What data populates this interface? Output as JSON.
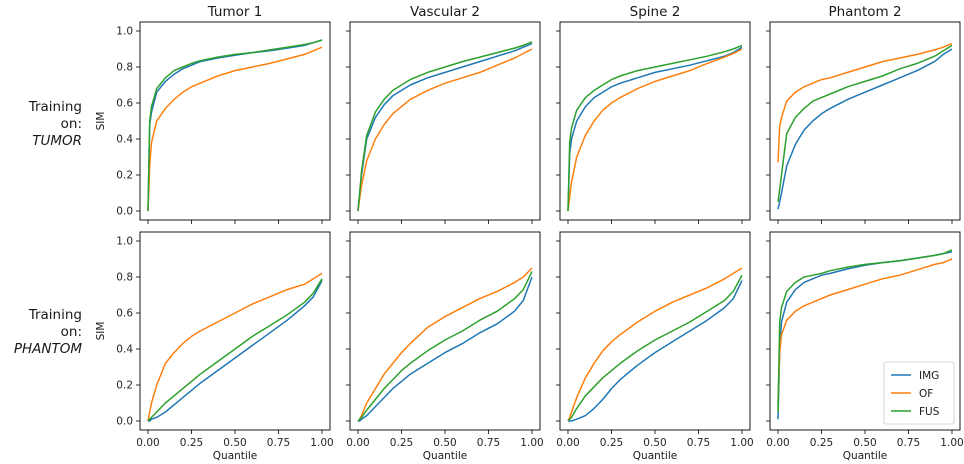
{
  "colors": {
    "IMG": "#1f77b4",
    "OF": "#ff7f0e",
    "FUS": "#2ca02c"
  },
  "row_labels": [
    {
      "line1": "Training",
      "line2": "on:",
      "line3": "TUMOR"
    },
    {
      "line1": "Training",
      "line2": "on:",
      "line3": "PHANTOM"
    }
  ],
  "chart_data": {
    "type": "line",
    "layout": "2x4 grid",
    "column_titles": [
      "Tumor 1",
      "Vascular 2",
      "Spine 2",
      "Phantom 2"
    ],
    "xlabel": "Quantile",
    "ylabel": "SIM",
    "xlim": [
      0,
      1
    ],
    "ylim": [
      0,
      1
    ],
    "xticks": [
      "0.00",
      "0.25",
      "0.50",
      "0.75",
      "1.00"
    ],
    "yticks": [
      "0.0",
      "0.2",
      "0.4",
      "0.6",
      "0.8",
      "1.0"
    ],
    "grid": false,
    "legend": {
      "placement": "lower-right",
      "panel": "row 2, Phantom 2",
      "entries": [
        "IMG",
        "OF",
        "FUS"
      ]
    },
    "series_names": [
      "IMG",
      "OF",
      "FUS"
    ],
    "x": [
      0,
      0.01,
      0.02,
      0.05,
      0.1,
      0.15,
      0.2,
      0.25,
      0.3,
      0.4,
      0.5,
      0.6,
      0.7,
      0.8,
      0.9,
      0.95,
      1.0
    ],
    "panels": [
      {
        "row": 0,
        "col": 0,
        "series": [
          {
            "name": "IMG",
            "values": [
              0.0,
              0.48,
              0.55,
              0.66,
              0.72,
              0.76,
              0.79,
              0.81,
              0.83,
              0.85,
              0.865,
              0.88,
              0.89,
              0.905,
              0.92,
              0.935,
              0.95
            ]
          },
          {
            "name": "OF",
            "values": [
              0.0,
              0.25,
              0.38,
              0.5,
              0.57,
              0.62,
              0.66,
              0.69,
              0.71,
              0.75,
              0.78,
              0.8,
              0.82,
              0.845,
              0.87,
              0.89,
              0.91
            ]
          },
          {
            "name": "FUS",
            "values": [
              0.0,
              0.5,
              0.58,
              0.68,
              0.74,
              0.78,
              0.8,
              0.82,
              0.835,
              0.855,
              0.87,
              0.88,
              0.895,
              0.91,
              0.925,
              0.935,
              0.95
            ]
          }
        ]
      },
      {
        "row": 0,
        "col": 1,
        "series": [
          {
            "name": "IMG",
            "values": [
              0.0,
              0.1,
              0.2,
              0.4,
              0.52,
              0.59,
              0.64,
              0.67,
              0.7,
              0.74,
              0.77,
              0.8,
              0.83,
              0.86,
              0.89,
              0.91,
              0.93
            ]
          },
          {
            "name": "OF",
            "values": [
              0.0,
              0.07,
              0.14,
              0.28,
              0.4,
              0.48,
              0.54,
              0.58,
              0.62,
              0.67,
              0.71,
              0.74,
              0.77,
              0.81,
              0.85,
              0.875,
              0.9
            ]
          },
          {
            "name": "FUS",
            "values": [
              0.0,
              0.1,
              0.22,
              0.42,
              0.55,
              0.62,
              0.67,
              0.7,
              0.73,
              0.77,
              0.8,
              0.83,
              0.855,
              0.88,
              0.905,
              0.92,
              0.94
            ]
          }
        ]
      },
      {
        "row": 0,
        "col": 2,
        "series": [
          {
            "name": "IMG",
            "values": [
              0.0,
              0.32,
              0.4,
              0.5,
              0.58,
              0.63,
              0.66,
              0.69,
              0.71,
              0.74,
              0.77,
              0.79,
              0.81,
              0.835,
              0.86,
              0.88,
              0.91
            ]
          },
          {
            "name": "OF",
            "values": [
              0.0,
              0.08,
              0.16,
              0.3,
              0.42,
              0.5,
              0.56,
              0.6,
              0.63,
              0.68,
              0.72,
              0.75,
              0.78,
              0.82,
              0.855,
              0.875,
              0.9
            ]
          },
          {
            "name": "FUS",
            "values": [
              0.0,
              0.38,
              0.46,
              0.56,
              0.63,
              0.67,
              0.7,
              0.73,
              0.75,
              0.78,
              0.8,
              0.82,
              0.84,
              0.86,
              0.885,
              0.9,
              0.92
            ]
          }
        ]
      },
      {
        "row": 0,
        "col": 3,
        "series": [
          {
            "name": "IMG",
            "values": [
              0.01,
              0.05,
              0.1,
              0.25,
              0.37,
              0.45,
              0.5,
              0.54,
              0.57,
              0.62,
              0.66,
              0.7,
              0.74,
              0.78,
              0.83,
              0.87,
              0.9
            ]
          },
          {
            "name": "OF",
            "values": [
              0.27,
              0.47,
              0.52,
              0.61,
              0.66,
              0.69,
              0.71,
              0.73,
              0.74,
              0.77,
              0.8,
              0.83,
              0.85,
              0.87,
              0.895,
              0.91,
              0.93
            ]
          },
          {
            "name": "FUS",
            "values": [
              0.05,
              0.12,
              0.2,
              0.43,
              0.52,
              0.57,
              0.61,
              0.63,
              0.65,
              0.69,
              0.72,
              0.75,
              0.79,
              0.82,
              0.86,
              0.89,
              0.92
            ]
          }
        ]
      },
      {
        "row": 1,
        "col": 0,
        "series": [
          {
            "name": "IMG",
            "values": [
              0.0,
              0.0,
              0.01,
              0.02,
              0.05,
              0.09,
              0.13,
              0.17,
              0.21,
              0.28,
              0.35,
              0.42,
              0.49,
              0.56,
              0.64,
              0.69,
              0.78
            ]
          },
          {
            "name": "OF",
            "values": [
              0.0,
              0.05,
              0.1,
              0.2,
              0.32,
              0.38,
              0.43,
              0.47,
              0.5,
              0.55,
              0.6,
              0.65,
              0.69,
              0.73,
              0.76,
              0.79,
              0.82
            ]
          },
          {
            "name": "FUS",
            "values": [
              0.0,
              0.01,
              0.02,
              0.05,
              0.1,
              0.14,
              0.18,
              0.22,
              0.26,
              0.33,
              0.4,
              0.47,
              0.53,
              0.59,
              0.66,
              0.71,
              0.79
            ]
          }
        ]
      },
      {
        "row": 1,
        "col": 1,
        "series": [
          {
            "name": "IMG",
            "values": [
              0.0,
              0.0,
              0.01,
              0.03,
              0.08,
              0.13,
              0.18,
              0.22,
              0.26,
              0.32,
              0.38,
              0.43,
              0.49,
              0.54,
              0.61,
              0.67,
              0.8
            ]
          },
          {
            "name": "OF",
            "values": [
              0.0,
              0.01,
              0.03,
              0.1,
              0.18,
              0.26,
              0.32,
              0.38,
              0.43,
              0.52,
              0.58,
              0.63,
              0.68,
              0.72,
              0.77,
              0.8,
              0.85
            ]
          },
          {
            "name": "FUS",
            "values": [
              0.0,
              0.01,
              0.02,
              0.06,
              0.12,
              0.18,
              0.23,
              0.28,
              0.32,
              0.39,
              0.45,
              0.5,
              0.56,
              0.61,
              0.68,
              0.73,
              0.83
            ]
          }
        ]
      },
      {
        "row": 1,
        "col": 2,
        "series": [
          {
            "name": "IMG",
            "values": [
              0.0,
              0.0,
              0.0,
              0.01,
              0.03,
              0.07,
              0.12,
              0.18,
              0.23,
              0.31,
              0.38,
              0.44,
              0.5,
              0.56,
              0.63,
              0.68,
              0.78
            ]
          },
          {
            "name": "OF",
            "values": [
              0.0,
              0.02,
              0.05,
              0.13,
              0.24,
              0.32,
              0.39,
              0.44,
              0.48,
              0.55,
              0.61,
              0.66,
              0.7,
              0.74,
              0.79,
              0.82,
              0.85
            ]
          },
          {
            "name": "FUS",
            "values": [
              0.0,
              0.01,
              0.02,
              0.07,
              0.14,
              0.19,
              0.24,
              0.28,
              0.32,
              0.39,
              0.45,
              0.5,
              0.55,
              0.61,
              0.67,
              0.72,
              0.81
            ]
          }
        ]
      },
      {
        "row": 1,
        "col": 3,
        "series": [
          {
            "name": "IMG",
            "values": [
              0.01,
              0.4,
              0.55,
              0.66,
              0.73,
              0.77,
              0.79,
              0.81,
              0.82,
              0.845,
              0.865,
              0.88,
              0.89,
              0.905,
              0.92,
              0.93,
              0.94
            ]
          },
          {
            "name": "OF",
            "values": [
              0.1,
              0.38,
              0.48,
              0.56,
              0.61,
              0.64,
              0.66,
              0.68,
              0.7,
              0.73,
              0.76,
              0.79,
              0.81,
              0.84,
              0.87,
              0.88,
              0.9
            ]
          },
          {
            "name": "FUS",
            "values": [
              0.05,
              0.55,
              0.63,
              0.72,
              0.77,
              0.8,
              0.81,
              0.82,
              0.835,
              0.855,
              0.87,
              0.88,
              0.89,
              0.905,
              0.92,
              0.93,
              0.95
            ]
          }
        ]
      }
    ]
  }
}
